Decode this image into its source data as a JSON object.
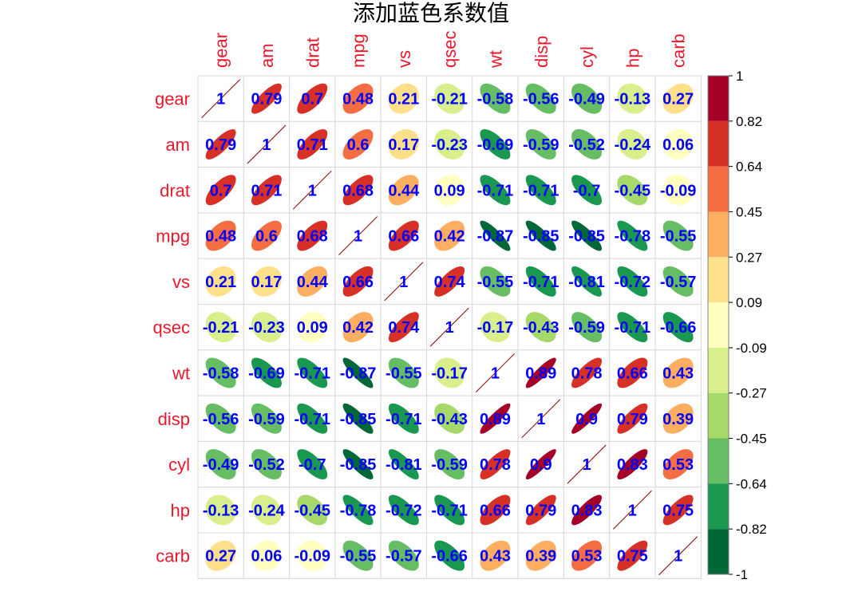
{
  "chart_data": {
    "type": "heatmap",
    "title": "添加蓝色系数值",
    "variables": [
      "gear",
      "am",
      "drat",
      "mpg",
      "vs",
      "qsec",
      "wt",
      "disp",
      "cyl",
      "hp",
      "carb"
    ],
    "matrix_labels": [
      [
        "1",
        "0.79",
        "0.7",
        "0.48",
        "0.21",
        "-0.21",
        "-0.58",
        "-0.56",
        "-0.49",
        "-0.13",
        "0.27"
      ],
      [
        "0.79",
        "1",
        "0.71",
        "0.6",
        "0.17",
        "-0.23",
        "-0.69",
        "-0.59",
        "-0.52",
        "-0.24",
        "0.06"
      ],
      [
        "0.7",
        "0.71",
        "1",
        "0.68",
        "0.44",
        "0.09",
        "-0.71",
        "-0.71",
        "-0.7",
        "-0.45",
        "-0.09"
      ],
      [
        "0.48",
        "0.6",
        "0.68",
        "1",
        "0.66",
        "0.42",
        "-0.87",
        "-0.85",
        "-0.85",
        "-0.78",
        "-0.55"
      ],
      [
        "0.21",
        "0.17",
        "0.44",
        "0.66",
        "1",
        "0.74",
        "-0.55",
        "-0.71",
        "-0.81",
        "-0.72",
        "-0.57"
      ],
      [
        "-0.21",
        "-0.23",
        "0.09",
        "0.42",
        "0.74",
        "1",
        "-0.17",
        "-0.43",
        "-0.59",
        "-0.71",
        "-0.66"
      ],
      [
        "-0.58",
        "-0.69",
        "-0.71",
        "-0.87",
        "-0.55",
        "-0.17",
        "1",
        "0.89",
        "0.78",
        "0.66",
        "0.43"
      ],
      [
        "-0.56",
        "-0.59",
        "-0.71",
        "-0.85",
        "-0.71",
        "-0.43",
        "0.89",
        "1",
        "0.9",
        "0.79",
        "0.39"
      ],
      [
        "-0.49",
        "-0.52",
        "-0.7",
        "-0.85",
        "-0.81",
        "-0.59",
        "0.78",
        "0.9",
        "1",
        "0.83",
        "0.53"
      ],
      [
        "-0.13",
        "-0.24",
        "-0.45",
        "-0.78",
        "-0.72",
        "-0.71",
        "0.66",
        "0.79",
        "0.83",
        "1",
        "0.75"
      ],
      [
        "0.27",
        "0.06",
        "-0.09",
        "-0.55",
        "-0.57",
        "-0.66",
        "0.43",
        "0.39",
        "0.53",
        "0.75",
        "1"
      ]
    ],
    "colorbar": {
      "tick_labels": [
        "1",
        "0.82",
        "0.64",
        "0.45",
        "0.27",
        "0.09",
        "-0.09",
        "-0.27",
        "-0.45",
        "-0.64",
        "-0.82",
        "-1"
      ],
      "colors": [
        "#a50026",
        "#d73027",
        "#f46d43",
        "#fdae61",
        "#fee08b",
        "#ffffbf",
        "#d9ef8b",
        "#a6d96a",
        "#66bd63",
        "#1a9850",
        "#006837"
      ],
      "range": [
        -1,
        1
      ]
    },
    "value_text_color": "#0000ff",
    "label_color": "#e8192c",
    "grid": true
  }
}
